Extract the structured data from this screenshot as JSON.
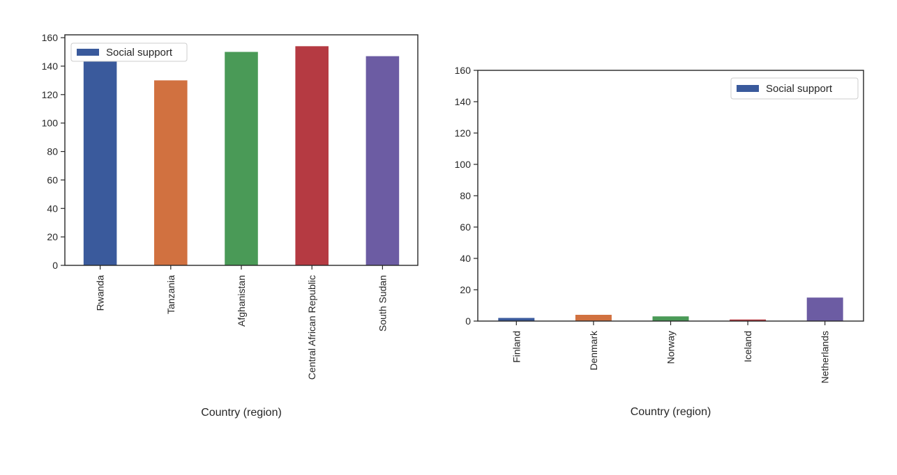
{
  "chart_data": [
    {
      "type": "bar",
      "title": "",
      "xlabel": "Country (region)",
      "ylabel": "",
      "ylim": [
        0,
        162
      ],
      "yticks": [
        0,
        20,
        40,
        60,
        80,
        100,
        120,
        140,
        160
      ],
      "categories": [
        "Rwanda",
        "Tanzania",
        "Afghanistan",
        "Central African Republic",
        "South Sudan"
      ],
      "series": [
        {
          "name": "Social support",
          "values": [
            144,
            130,
            150,
            154,
            147
          ]
        }
      ],
      "bar_colors": [
        "#3a5a9c",
        "#d17140",
        "#4a9a57",
        "#b53a42",
        "#6c5ca3"
      ],
      "legend": {
        "entry": "Social support",
        "swatch_color": "#3a5a9c",
        "placement": "upper-left"
      },
      "grid": false
    },
    {
      "type": "bar",
      "title": "",
      "xlabel": "Country (region)",
      "ylabel": "",
      "ylim": [
        0,
        160
      ],
      "yticks": [
        0,
        20,
        40,
        60,
        80,
        100,
        120,
        140,
        160
      ],
      "categories": [
        "Finland",
        "Denmark",
        "Norway",
        "Iceland",
        "Netherlands"
      ],
      "series": [
        {
          "name": "Social support",
          "values": [
            2,
            4,
            3,
            1,
            15
          ]
        }
      ],
      "bar_colors": [
        "#3a5a9c",
        "#d17140",
        "#4a9a57",
        "#b53a42",
        "#6c5ca3"
      ],
      "legend": {
        "entry": "Social support",
        "swatch_color": "#3a5a9c",
        "placement": "upper-right"
      },
      "grid": false
    }
  ]
}
